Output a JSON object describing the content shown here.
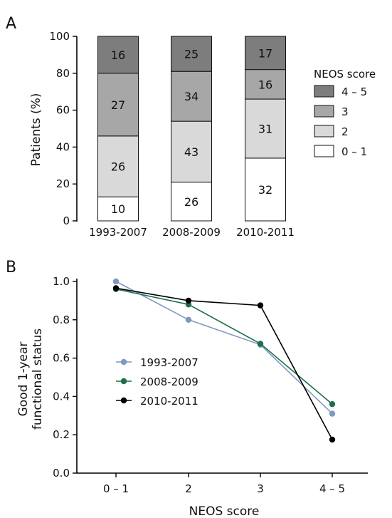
{
  "colors": {
    "bg": "#ffffff",
    "axis": "#000000",
    "seg_4_5": "#7d7d7d",
    "seg_3": "#a7a7a7",
    "seg_2": "#d9d9d9",
    "seg_0_1": "#ffffff",
    "series_1993": "#7f99be",
    "series_2008": "#1e6e4a",
    "series_2010": "#000000"
  },
  "chart_data": [
    {
      "panel_label": "A",
      "type": "bar",
      "stacked": true,
      "ylabel": "Patients (%)",
      "xlabel": "",
      "ylim": [
        0,
        100
      ],
      "yticks": [
        0,
        20,
        40,
        60,
        80,
        100
      ],
      "categories": [
        "1993-2007",
        "2008-2009",
        "2010-2011"
      ],
      "legend_title": "NEOS score",
      "legend_position": "right",
      "series": [
        {
          "name": "0 – 1",
          "values": [
            13,
            21,
            34
          ],
          "labels": [
            "10",
            "26",
            "32"
          ],
          "color_key": "seg_0_1"
        },
        {
          "name": "2",
          "values": [
            33,
            33,
            32
          ],
          "labels": [
            "26",
            "43",
            "31"
          ],
          "color_key": "seg_2"
        },
        {
          "name": "3",
          "values": [
            34,
            27,
            16
          ],
          "labels": [
            "27",
            "34",
            "16"
          ],
          "color_key": "seg_3"
        },
        {
          "name": "4 – 5",
          "values": [
            20,
            19,
            18
          ],
          "labels": [
            "16",
            "25",
            "17"
          ],
          "color_key": "seg_4_5"
        }
      ],
      "legend_order": [
        "4 – 5",
        "3",
        "2",
        "0 – 1"
      ],
      "grid": false
    },
    {
      "panel_label": "B",
      "type": "line",
      "xlabel": "NEOS score",
      "ylabel_lines": [
        "Good 1-year",
        "functional status"
      ],
      "categories": [
        "0 – 1",
        "2",
        "3",
        "4 – 5"
      ],
      "ylim": [
        0,
        1
      ],
      "yticks": [
        "0.0",
        "0.2",
        "0.4",
        "0.6",
        "0.8",
        "1.0"
      ],
      "legend_position": "center-left",
      "series": [
        {
          "name": "1993-2007",
          "values": [
            1.0,
            0.8,
            0.67,
            0.31
          ],
          "color_key": "series_1993"
        },
        {
          "name": "2008-2009",
          "values": [
            0.96,
            0.88,
            0.675,
            0.36
          ],
          "color_key": "series_2008"
        },
        {
          "name": "2010-2011",
          "values": [
            0.965,
            0.9,
            0.875,
            0.175
          ],
          "color_key": "series_2010"
        }
      ],
      "grid": false
    }
  ]
}
